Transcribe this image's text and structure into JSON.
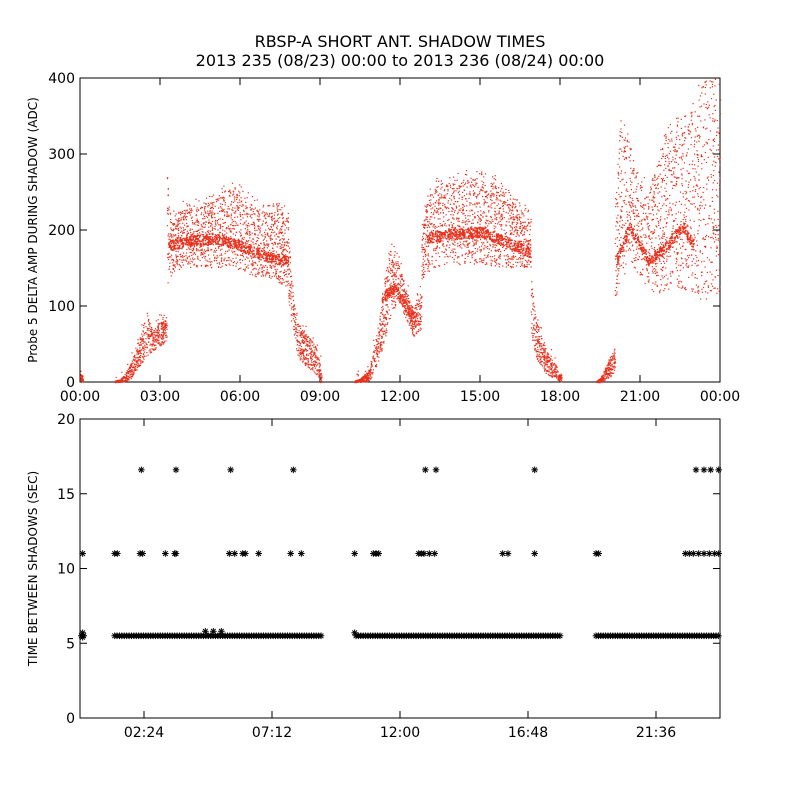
{
  "title_line1": "RBSP-A SHORT ANT. SHADOW TIMES",
  "title_line2": "2013 235 (08/23) 00:00 to 2013 236 (08/24) 00:00",
  "colors": {
    "trace": "#e8301c",
    "axes": "#000000",
    "background": "#ffffff"
  },
  "chart_data": [
    {
      "type": "scatter",
      "name": "top-panel",
      "ylabel": "Probe 5 DELTA AMP DURING SHADOW (ADC)",
      "xlabel": "",
      "x_unit": "hours since 00:00",
      "xlim": [
        0,
        24
      ],
      "ylim": [
        0,
        400
      ],
      "xtick_values": [
        0,
        3,
        6,
        9,
        12,
        15,
        18,
        21,
        24
      ],
      "xtick_labels": [
        "00:00",
        "03:00",
        "06:00",
        "09:00",
        "12:00",
        "15:00",
        "18:00",
        "21:00",
        "00:00"
      ],
      "yticks": [
        0,
        100,
        200,
        300,
        400
      ],
      "series": [
        {
          "color": "#e8301c",
          "segments": [
            {
              "x": [
                0.0,
                0.05,
                0.1
              ],
              "upper": [
                12,
                10,
                5
              ],
              "lower": [
                0,
                0,
                0
              ]
            },
            {
              "x": [
                1.3,
                1.5,
                1.7,
                1.9,
                2.1,
                2.3,
                2.5,
                2.7,
                2.9,
                3.1,
                3.25
              ],
              "upper": [
                2,
                4,
                12,
                25,
                45,
                65,
                95,
                70,
                75,
                85,
                80
              ],
              "lower": [
                0,
                0,
                1,
                5,
                15,
                25,
                35,
                40,
                45,
                50,
                55
              ]
            },
            {
              "x": [
                3.25,
                3.4,
                3.6,
                4.0,
                4.5,
                5.0,
                5.5,
                6.0,
                6.5,
                7.0,
                7.5,
                7.8
              ],
              "upper": [
                280,
                210,
                225,
                228,
                232,
                240,
                255,
                248,
                232,
                222,
                225,
                222
              ],
              "lower": [
                125,
                140,
                148,
                150,
                150,
                150,
                150,
                148,
                140,
                135,
                130,
                125
              ]
            },
            {
              "x": [
                7.8,
                8.0,
                8.2,
                8.5,
                8.8,
                9.0,
                9.05
              ],
              "upper": [
                195,
                110,
                75,
                65,
                50,
                25,
                10
              ],
              "lower": [
                110,
                55,
                30,
                20,
                10,
                0,
                0
              ]
            },
            {
              "x": [
                10.3,
                10.5,
                10.8,
                11.0,
                11.3,
                11.6,
                11.9,
                12.2,
                12.5,
                12.8
              ],
              "upper": [
                2,
                5,
                15,
                45,
                100,
                175,
                160,
                125,
                95,
                120
              ],
              "lower": [
                0,
                0,
                1,
                10,
                40,
                80,
                110,
                85,
                60,
                70
              ]
            },
            {
              "x": [
                12.8,
                13.0,
                13.3,
                13.6,
                14.0,
                14.5,
                15.0,
                15.5,
                16.0,
                16.5,
                16.9
              ],
              "upper": [
                195,
                240,
                258,
                262,
                263,
                268,
                268,
                262,
                245,
                228,
                215
              ],
              "lower": [
                130,
                145,
                150,
                155,
                155,
                155,
                155,
                152,
                150,
                150,
                150
              ]
            },
            {
              "x": [
                16.9,
                17.1,
                17.3,
                17.5,
                17.8,
                18.05
              ],
              "upper": [
                140,
                80,
                60,
                40,
                25,
                10
              ],
              "lower": [
                60,
                30,
                20,
                10,
                5,
                0
              ]
            },
            {
              "x": [
                19.35,
                19.5,
                19.7,
                19.9,
                20.05
              ],
              "upper": [
                2,
                5,
                20,
                35,
                45
              ],
              "lower": [
                0,
                0,
                2,
                8,
                15
              ]
            },
            {
              "x": [
                20.05,
                20.3,
                20.6,
                21.0,
                21.3,
                21.7,
                22.0,
                22.3,
                22.7,
                23.0,
                23.3,
                23.6,
                24.0
              ],
              "upper": [
                225,
                355,
                310,
                265,
                250,
                295,
                330,
                335,
                340,
                365,
                390,
                405,
                400
              ],
              "lower": [
                110,
                130,
                150,
                140,
                120,
                115,
                120,
                130,
                115,
                120,
                100,
                110,
                120
              ]
            }
          ],
          "bands": [
            {
              "x": [
                3.3,
                4.0,
                5.0,
                6.0,
                7.0,
                7.8
              ],
              "y": [
                180,
                185,
                190,
                180,
                165,
                160
              ]
            },
            {
              "x": [
                11.3,
                11.8,
                12.2,
                12.6
              ],
              "y": [
                110,
                125,
                100,
                80
              ]
            },
            {
              "x": [
                13.0,
                14.0,
                15.0,
                16.0,
                16.9
              ],
              "y": [
                190,
                195,
                198,
                185,
                170
              ]
            },
            {
              "x": [
                20.1,
                20.6,
                21.3,
                22.0,
                22.6,
                23.0
              ],
              "y": [
                160,
                205,
                160,
                180,
                205,
                180
              ]
            }
          ]
        }
      ]
    },
    {
      "type": "scatter",
      "name": "bottom-panel",
      "ylabel": "TIME BETWEEN SHADOWS (SEC)",
      "xlabel": "",
      "x_unit": "hours since 00:00",
      "xlim": [
        0,
        24
      ],
      "ylim": [
        0,
        20
      ],
      "xtick_values": [
        2.4,
        7.2,
        12.0,
        16.8,
        21.6
      ],
      "xtick_labels": [
        "02:24",
        "07:12",
        "12:00",
        "16:48",
        "21:36"
      ],
      "yticks": [
        0,
        5,
        10,
        15,
        20
      ],
      "series": [
        {
          "color": "#000000",
          "marker": "asterisk",
          "continuous_ranges_at_5_5": [
            [
              0.05,
              0.15
            ],
            [
              1.3,
              9.1
            ],
            [
              10.35,
              18.05
            ],
            [
              19.35,
              24.0
            ]
          ],
          "points": [
            {
              "x": 0.1,
              "y": 11
            },
            {
              "x": 0.1,
              "y": 5.7
            },
            {
              "x": 0.1,
              "y": 5.4
            },
            {
              "x": 1.3,
              "y": 11
            },
            {
              "x": 1.4,
              "y": 11
            },
            {
              "x": 2.25,
              "y": 11
            },
            {
              "x": 2.35,
              "y": 11
            },
            {
              "x": 2.3,
              "y": 16.6
            },
            {
              "x": 3.2,
              "y": 11
            },
            {
              "x": 3.55,
              "y": 11
            },
            {
              "x": 3.6,
              "y": 11
            },
            {
              "x": 3.6,
              "y": 16.6
            },
            {
              "x": 5.6,
              "y": 11
            },
            {
              "x": 5.65,
              "y": 16.6
            },
            {
              "x": 5.8,
              "y": 11
            },
            {
              "x": 6.1,
              "y": 11
            },
            {
              "x": 6.2,
              "y": 11
            },
            {
              "x": 6.7,
              "y": 11
            },
            {
              "x": 7.9,
              "y": 11
            },
            {
              "x": 8.0,
              "y": 16.6
            },
            {
              "x": 8.3,
              "y": 11
            },
            {
              "x": 10.3,
              "y": 11
            },
            {
              "x": 10.3,
              "y": 5.7
            },
            {
              "x": 11.0,
              "y": 11
            },
            {
              "x": 11.1,
              "y": 11
            },
            {
              "x": 11.2,
              "y": 11
            },
            {
              "x": 12.7,
              "y": 11
            },
            {
              "x": 12.8,
              "y": 11
            },
            {
              "x": 12.9,
              "y": 11
            },
            {
              "x": 12.95,
              "y": 16.6
            },
            {
              "x": 13.1,
              "y": 11
            },
            {
              "x": 13.3,
              "y": 11
            },
            {
              "x": 13.35,
              "y": 16.6
            },
            {
              "x": 15.85,
              "y": 11
            },
            {
              "x": 16.05,
              "y": 11
            },
            {
              "x": 17.05,
              "y": 11
            },
            {
              "x": 17.05,
              "y": 16.6
            },
            {
              "x": 19.35,
              "y": 11
            },
            {
              "x": 19.45,
              "y": 11
            },
            {
              "x": 22.7,
              "y": 11
            },
            {
              "x": 22.85,
              "y": 11
            },
            {
              "x": 23.0,
              "y": 11
            },
            {
              "x": 23.2,
              "y": 11
            },
            {
              "x": 23.4,
              "y": 11
            },
            {
              "x": 23.6,
              "y": 11
            },
            {
              "x": 23.8,
              "y": 11
            },
            {
              "x": 23.95,
              "y": 11
            },
            {
              "x": 23.1,
              "y": 16.6
            },
            {
              "x": 23.4,
              "y": 16.6
            },
            {
              "x": 23.65,
              "y": 16.6
            },
            {
              "x": 23.95,
              "y": 16.6
            },
            {
              "x": 4.7,
              "y": 5.8
            },
            {
              "x": 5.0,
              "y": 5.8
            },
            {
              "x": 5.3,
              "y": 5.8
            }
          ]
        }
      ]
    }
  ]
}
